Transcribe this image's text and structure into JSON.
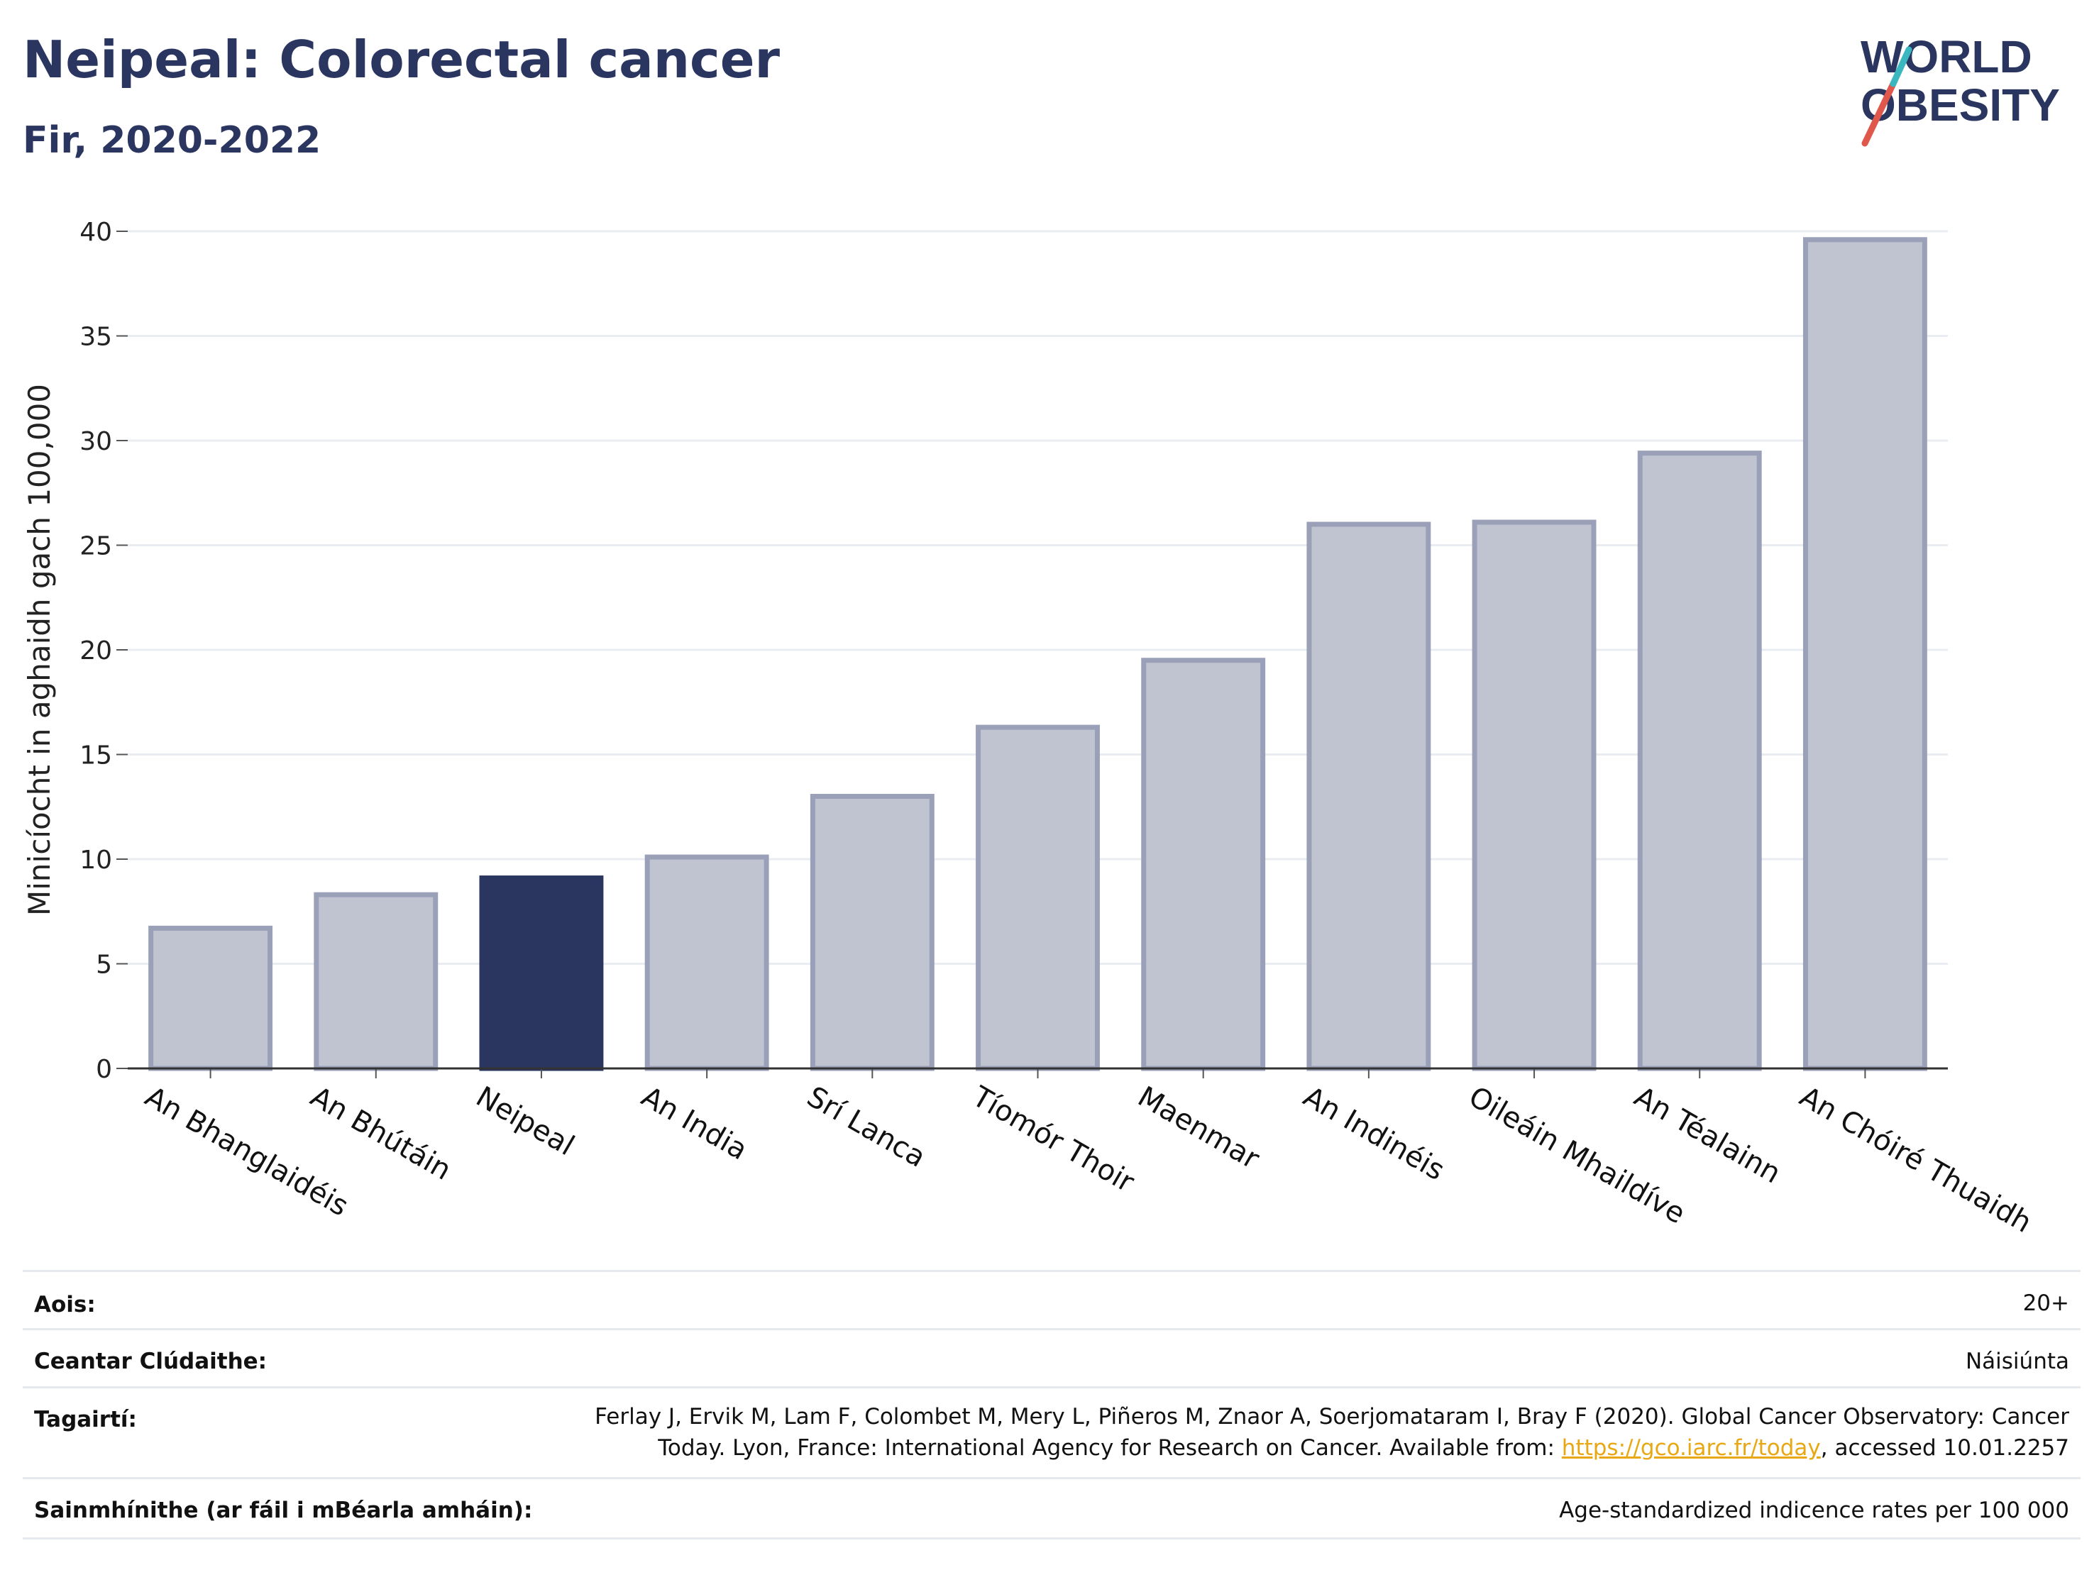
{
  "header": {
    "title": "Neipeal: Colorectal cancer",
    "subtitle": "Fir, 2020-2022"
  },
  "logo": {
    "line1": "WORLD",
    "line2": "OBESITY",
    "accent_colors": [
      "#e0584b",
      "#3ab7bf"
    ]
  },
  "chart_data": {
    "type": "bar",
    "title": "Neipeal: Colorectal cancer",
    "subtitle": "Fir, 2020-2022",
    "xlabel": "",
    "ylabel": "Minicíocht in aghaidh gach 100,000",
    "ylim": [
      0,
      40
    ],
    "yticks": [
      0,
      5,
      10,
      15,
      20,
      25,
      30,
      35,
      40
    ],
    "grid": true,
    "categories": [
      "An Bhanglaidéis",
      "An Bhútáin",
      "Neipeal",
      "An India",
      "Srí Lanca",
      "Tíomór Thoir",
      "Maenmar",
      "An Indinéis",
      "Oileáin Mhaildíve",
      "An Téalainn",
      "An Chóiré Thuaidh"
    ],
    "values": [
      6.7,
      8.3,
      9.1,
      10.1,
      13.0,
      16.3,
      19.5,
      26.0,
      26.1,
      29.4,
      39.6
    ],
    "highlight": "Neipeal",
    "colors": {
      "highlight": "#2a3560",
      "other_fill": "#c0c4d1",
      "other_stroke": "#9aa0b8",
      "grid": "#e9ecf1",
      "axis": "#333333"
    }
  },
  "meta": {
    "age_label": "Aois:",
    "age_value": "20+",
    "coverage_label": "Ceantar Clúdaithe:",
    "coverage_value": "Náisiúnta",
    "refs_label": "Tagairtí:",
    "refs_line1": "Ferlay J, Ervik M, Lam F, Colombet M, Mery L, Piñeros M, Znaor A, Soerjomataram I, Bray F (2020). Global Cancer Observatory: Cancer",
    "refs_line2_pre": "Today. Lyon, France: International Agency for Research on Cancer. Available from: ",
    "refs_link": "https://gco.iarc.fr/today",
    "refs_line2_post": ", accessed 10.01.2257",
    "defs_label": "Sainmhínithe (ar fáil i mBéarla amháin):",
    "defs_value": "Age-standardized indicence rates per 100 000"
  }
}
